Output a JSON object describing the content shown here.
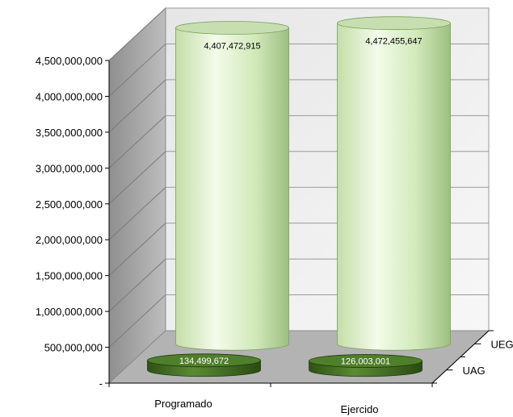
{
  "chart_data": {
    "type": "bar",
    "style": "3d-cylinder",
    "title": "",
    "xlabel": "",
    "ylabel": "",
    "categories": [
      "Programado",
      "Ejercido"
    ],
    "series": [
      {
        "name": "UAG",
        "values": [
          134499672,
          126003001
        ],
        "labels": [
          "134,499,672",
          "126,003,001"
        ],
        "color": "#3f6a1e"
      },
      {
        "name": "UEG",
        "values": [
          4407472915,
          4472455647
        ],
        "labels": [
          "4,407,472,915",
          "4,472,455,647"
        ],
        "color": "#d9efc6"
      }
    ],
    "ylim": [
      0,
      4500000000
    ],
    "yticks": [
      0,
      500000000,
      1000000000,
      1500000000,
      2000000000,
      2500000000,
      3000000000,
      3500000000,
      4000000000,
      4500000000
    ],
    "ytick_labels": [
      "-",
      "500,000,000",
      "1,000,000,000",
      "1,500,000,000",
      "2,000,000,000",
      "2,500,000,000",
      "3,000,000,000",
      "3,500,000,000",
      "4,000,000,000",
      "4,500,000,000"
    ],
    "grid": true,
    "legend": "depth-axis"
  }
}
